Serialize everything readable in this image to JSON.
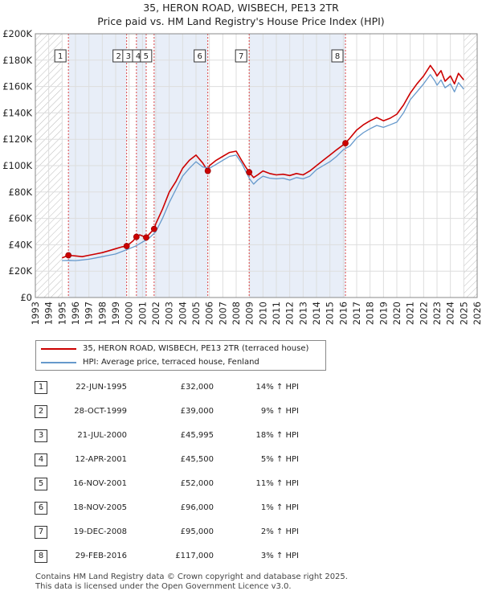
{
  "title_line1": "35, HERON ROAD, WISBECH, PE13 2TR",
  "title_line2": "Price paid vs. HM Land Registry's House Price Index (HPI)",
  "colors": {
    "property": "#cc0000",
    "hpi": "#6699cc",
    "band": "#e8eef8",
    "hatch": "#bbbbbb"
  },
  "chart_data": {
    "type": "line",
    "title": "Price paid vs. HM Land Registry's House Price Index (HPI)",
    "xlim": [
      1993,
      2026
    ],
    "ylim": [
      0,
      200000
    ],
    "x_ticks": [
      "1993",
      "1994",
      "1995",
      "1996",
      "1997",
      "1998",
      "1999",
      "2000",
      "2001",
      "2002",
      "2003",
      "2004",
      "2005",
      "2006",
      "2007",
      "2008",
      "2009",
      "2010",
      "2011",
      "2012",
      "2013",
      "2014",
      "2015",
      "2016",
      "2017",
      "2018",
      "2019",
      "2020",
      "2021",
      "2022",
      "2023",
      "2024",
      "2025",
      "2026"
    ],
    "y_ticks": [
      {
        "value": 0,
        "label": "£0"
      },
      {
        "value": 20000,
        "label": "£20K"
      },
      {
        "value": 40000,
        "label": "£40K"
      },
      {
        "value": 60000,
        "label": "£60K"
      },
      {
        "value": 80000,
        "label": "£80K"
      },
      {
        "value": 100000,
        "label": "£100K"
      },
      {
        "value": 120000,
        "label": "£120K"
      },
      {
        "value": 140000,
        "label": "£140K"
      },
      {
        "value": 160000,
        "label": "£160K"
      },
      {
        "value": 180000,
        "label": "£180K"
      },
      {
        "value": 200000,
        "label": "£200K"
      }
    ],
    "hatch_before": 1995.0,
    "hatch_after": 2025.0,
    "series": [
      {
        "name": "35, HERON ROAD, WISBECH, PE13 2TR (terraced house)",
        "color": "#cc0000",
        "x": [
          1995.0,
          1995.47,
          1996.0,
          1996.5,
          1997.0,
          1997.5,
          1998.0,
          1998.5,
          1999.0,
          1999.5,
          1999.82,
          2000.0,
          2000.3,
          2000.55,
          2000.8,
          2001.28,
          2001.5,
          2001.87,
          2002.0,
          2002.5,
          2003.0,
          2003.5,
          2004.0,
          2004.5,
          2005.0,
          2005.5,
          2005.88,
          2006.0,
          2006.5,
          2007.0,
          2007.5,
          2008.0,
          2008.4,
          2008.7,
          2008.97,
          2009.3,
          2009.6,
          2010.0,
          2010.5,
          2011.0,
          2011.5,
          2012.0,
          2012.5,
          2013.0,
          2013.5,
          2014.0,
          2014.5,
          2015.0,
          2015.5,
          2016.16,
          2016.5,
          2017.0,
          2017.5,
          2018.0,
          2018.5,
          2019.0,
          2019.5,
          2020.0,
          2020.5,
          2021.0,
          2021.5,
          2022.0,
          2022.5,
          2022.85,
          2023.0,
          2023.3,
          2023.6,
          2024.0,
          2024.3,
          2024.6,
          2025.0
        ],
        "y": [
          30000,
          32000,
          31500,
          31000,
          32000,
          33000,
          34000,
          35500,
          37000,
          38500,
          39000,
          40500,
          43000,
          45995,
          47500,
          45500,
          48000,
          52000,
          56000,
          67000,
          80000,
          88000,
          98000,
          104000,
          108000,
          102000,
          96000,
          100000,
          104000,
          107000,
          110000,
          111000,
          104000,
          99000,
          95000,
          91000,
          93000,
          96000,
          94000,
          93000,
          93500,
          92500,
          94000,
          93000,
          96000,
          100000,
          104000,
          108000,
          112000,
          117000,
          121000,
          127000,
          131000,
          134000,
          136500,
          134000,
          136000,
          139000,
          146000,
          155000,
          162000,
          168000,
          176000,
          171000,
          168000,
          172000,
          164000,
          168000,
          162000,
          170000,
          165000
        ]
      },
      {
        "name": "HPI: Average price, terraced house, Fenland",
        "color": "#6699cc",
        "x": [
          1995.0,
          1995.5,
          1996.0,
          1996.5,
          1997.0,
          1997.5,
          1998.0,
          1998.5,
          1999.0,
          1999.5,
          2000.0,
          2000.5,
          2001.0,
          2001.5,
          2002.0,
          2002.5,
          2003.0,
          2003.5,
          2004.0,
          2004.5,
          2005.0,
          2005.5,
          2006.0,
          2006.5,
          2007.0,
          2007.5,
          2008.0,
          2008.4,
          2008.7,
          2009.0,
          2009.3,
          2009.6,
          2010.0,
          2010.5,
          2011.0,
          2011.5,
          2012.0,
          2012.5,
          2013.0,
          2013.5,
          2014.0,
          2014.5,
          2015.0,
          2015.5,
          2016.0,
          2016.5,
          2017.0,
          2017.5,
          2018.0,
          2018.5,
          2019.0,
          2019.5,
          2020.0,
          2020.5,
          2021.0,
          2021.5,
          2022.0,
          2022.5,
          2022.85,
          2023.0,
          2023.3,
          2023.6,
          2024.0,
          2024.3,
          2024.6,
          2025.0
        ],
        "y": [
          28000,
          28200,
          28000,
          28500,
          29000,
          30000,
          31000,
          32000,
          33000,
          35000,
          37000,
          39000,
          42000,
          45000,
          50000,
          60000,
          72000,
          82000,
          92000,
          98000,
          103000,
          99000,
          98000,
          101000,
          104000,
          107000,
          108000,
          102000,
          96000,
          90000,
          86000,
          89000,
          92000,
          90500,
          90000,
          90500,
          89000,
          91000,
          90000,
          92000,
          97000,
          100000,
          103000,
          107000,
          112000,
          115000,
          121000,
          125000,
          128000,
          130500,
          129000,
          131000,
          133000,
          140000,
          150000,
          156000,
          162000,
          169000,
          164000,
          161000,
          165000,
          159000,
          162000,
          156000,
          163000,
          158000
        ]
      }
    ],
    "sales": [
      {
        "label": "1",
        "x": 1995.47,
        "y": 32000
      },
      {
        "label": "2",
        "x": 1999.82,
        "y": 39000
      },
      {
        "label": "3",
        "x": 2000.55,
        "y": 45995
      },
      {
        "label": "4",
        "x": 2001.28,
        "y": 45500
      },
      {
        "label": "5",
        "x": 2001.87,
        "y": 52000
      },
      {
        "label": "6",
        "x": 2005.88,
        "y": 96000
      },
      {
        "label": "7",
        "x": 2008.97,
        "y": 95000
      },
      {
        "label": "8",
        "x": 2016.16,
        "y": 117000
      }
    ]
  },
  "legend": {
    "property_label": "35, HERON ROAD, WISBECH, PE13 2TR (terraced house)",
    "hpi_label": "HPI: Average price, terraced house, Fenland"
  },
  "transactions": [
    {
      "num": "1",
      "date": "22-JUN-1995",
      "price": "£32,000",
      "hpi": "14% ↑ HPI"
    },
    {
      "num": "2",
      "date": "28-OCT-1999",
      "price": "£39,000",
      "hpi": "9% ↑ HPI"
    },
    {
      "num": "3",
      "date": "21-JUL-2000",
      "price": "£45,995",
      "hpi": "18% ↑ HPI"
    },
    {
      "num": "4",
      "date": "12-APR-2001",
      "price": "£45,500",
      "hpi": "5% ↑ HPI"
    },
    {
      "num": "5",
      "date": "16-NOV-2001",
      "price": "£52,000",
      "hpi": "11% ↑ HPI"
    },
    {
      "num": "6",
      "date": "18-NOV-2005",
      "price": "£96,000",
      "hpi": "1% ↑ HPI"
    },
    {
      "num": "7",
      "date": "19-DEC-2008",
      "price": "£95,000",
      "hpi": "2% ↑ HPI"
    },
    {
      "num": "8",
      "date": "29-FEB-2016",
      "price": "£117,000",
      "hpi": "3% ↑ HPI"
    }
  ],
  "footer_line1": "Contains HM Land Registry data © Crown copyright and database right 2025.",
  "footer_line2": "This data is licensed under the Open Government Licence v3.0."
}
